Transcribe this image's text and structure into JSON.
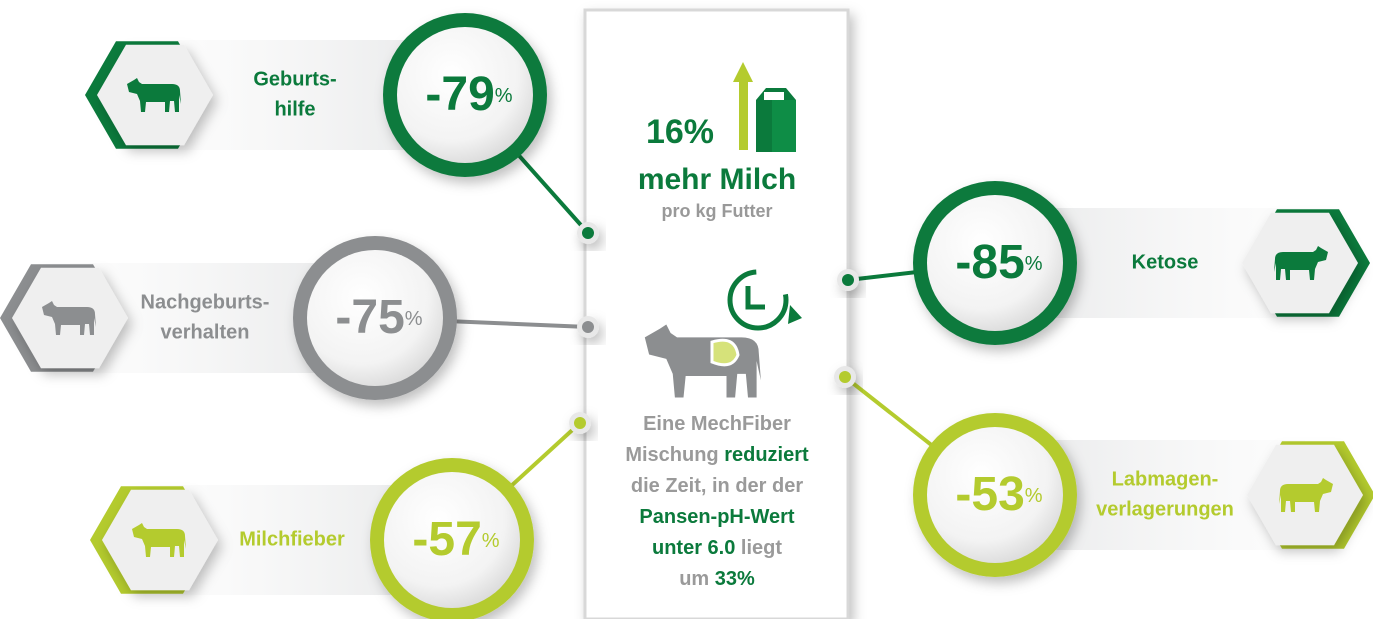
{
  "items": [
    {
      "label": [
        "Geburts-",
        "hilfe"
      ],
      "value": -79,
      "unit": "%",
      "color": "#0b7a3c"
    },
    {
      "label": [
        "Nachgeburts-",
        "verhalten"
      ],
      "value": -75,
      "unit": "%",
      "color": "#8c8e90"
    },
    {
      "label": [
        "Milchfieber"
      ],
      "value": -57,
      "unit": "%",
      "color": "#b4cb2e"
    },
    {
      "label": [
        "Ketose"
      ],
      "value": -85,
      "unit": "%",
      "color": "#0b7a3c"
    },
    {
      "label": [
        "Labmagen-",
        "verlagerungen"
      ],
      "value": -53,
      "unit": "%",
      "color": "#b4cb2e"
    }
  ],
  "center": {
    "headline_value": "16%",
    "headline": "mehr Milch",
    "subline": "pro kg Futter",
    "paragraph": [
      [
        {
          "text": "Eine MechFiber",
          "emphasis": false
        }
      ],
      [
        {
          "text": "Mischung ",
          "emphasis": false
        },
        {
          "text": "reduziert",
          "emphasis": true
        }
      ],
      [
        {
          "text": "die Zeit, in der der",
          "emphasis": false
        }
      ],
      [
        {
          "text": "Pansen-pH-Wert",
          "emphasis": true
        }
      ],
      [
        {
          "text": "unter 6.0",
          "emphasis": true
        },
        {
          "text": " liegt",
          "emphasis": false
        }
      ],
      [
        {
          "text": "um ",
          "emphasis": false
        },
        {
          "text": "33%",
          "emphasis": true
        }
      ]
    ]
  }
}
